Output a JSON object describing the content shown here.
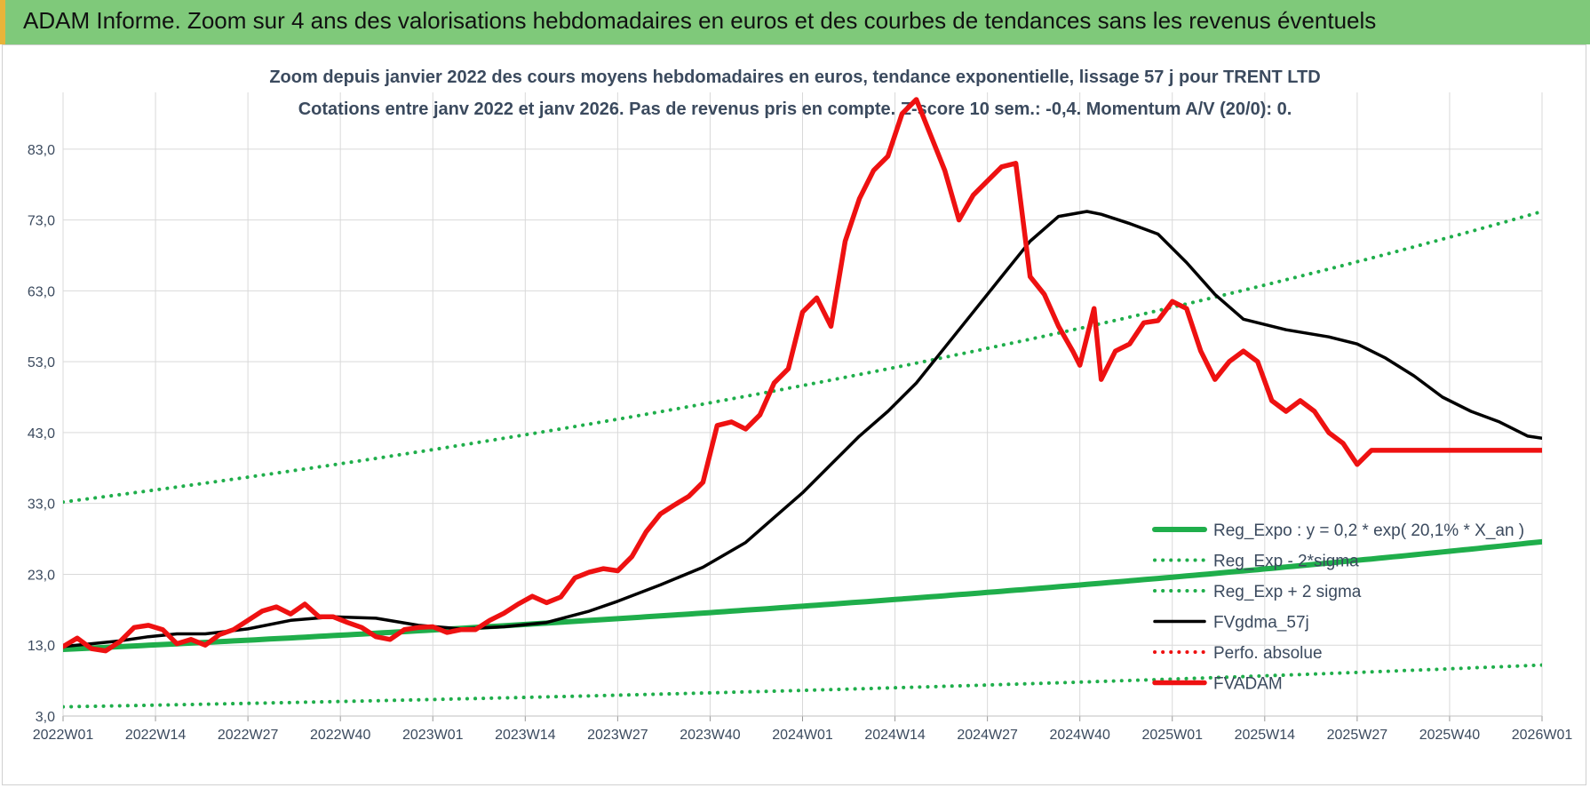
{
  "banner": {
    "title": "ADAM Informe. Zoom sur 4 ans des valorisations hebdomadaires en euros et des courbes de tendances sans les revenus éventuels"
  },
  "colors": {
    "banner_bg": "#7fc97a",
    "green": "#1fae4b",
    "black": "#000000",
    "red": "#ee1111",
    "grid": "#d9d9d9",
    "title_text": "#3b4a5e",
    "axis_text": "#3b4a5e"
  },
  "chart_data": {
    "type": "line",
    "title": "Zoom depuis janvier 2022 des cours moyens hebdomadaires en euros, tendance exponentielle, lissage 57 j pour TRENT LTD",
    "subtitle": "Cotations entre janv 2022 et janv 2026. Pas de revenus pris en compte. Z-score 10 sem.: -0,4. Momentum A/V (20/0): 0.",
    "ylim": [
      3,
      91
    ],
    "grid": true,
    "legend_position": "right",
    "y_ticks": [
      "3,0",
      "13,0",
      "23,0",
      "33,0",
      "43,0",
      "53,0",
      "63,0",
      "73,0",
      "83,0"
    ],
    "y_tick_values": [
      3,
      13,
      23,
      33,
      43,
      53,
      63,
      73,
      83
    ],
    "x_ticks": [
      "2022W01",
      "2022W14",
      "2022W27",
      "2022W40",
      "2023W01",
      "2023W14",
      "2023W27",
      "2023W40",
      "2024W01",
      "2024W14",
      "2024W27",
      "2024W40",
      "2025W01",
      "2025W14",
      "2025W27",
      "2025W40",
      "2026W01"
    ],
    "x_tick_weeks": [
      0,
      13,
      26,
      39,
      52,
      65,
      78,
      91,
      104,
      117,
      130,
      143,
      156,
      169,
      182,
      195,
      208
    ],
    "series": [
      {
        "name": "Reg_Expo : y = 0,2 * exp( 20,1% *  X_an )",
        "style": "solid-thick",
        "color": "#1fae4b",
        "x": [
          0,
          208
        ],
        "y": [
          12.4,
          27.6
        ],
        "curve": "exponential"
      },
      {
        "name": "Reg_Exp - 2*sigma",
        "style": "dotted",
        "color": "#1fae4b",
        "x": [
          0,
          208
        ],
        "y": [
          4.3,
          10.2
        ],
        "curve": "exponential"
      },
      {
        "name": "Reg_Exp + 2 sigma",
        "style": "dotted",
        "color": "#1fae4b",
        "x": [
          0,
          208
        ],
        "y": [
          33.2,
          74.2
        ],
        "curve": "exponential"
      },
      {
        "name": "FVgdma_57j",
        "style": "solid",
        "color": "#000000",
        "x": [
          0,
          4,
          8,
          12,
          16,
          20,
          26,
          32,
          38,
          44,
          50,
          56,
          62,
          68,
          74,
          78,
          84,
          90,
          96,
          100,
          104,
          108,
          112,
          116,
          120,
          124,
          128,
          132,
          136,
          140,
          144,
          146,
          150,
          154,
          158,
          162,
          166,
          172,
          178,
          182,
          186,
          190,
          194,
          198,
          202,
          206,
          208
        ],
        "y": [
          12.8,
          13.2,
          13.6,
          14.2,
          14.6,
          14.6,
          15.3,
          16.5,
          17.0,
          16.8,
          15.8,
          15.3,
          15.6,
          16.2,
          17.8,
          19.2,
          21.5,
          24.0,
          27.5,
          31.0,
          34.5,
          38.5,
          42.5,
          46.0,
          50.0,
          55.0,
          60.0,
          65.0,
          70.0,
          73.5,
          74.2,
          73.8,
          72.5,
          71.0,
          67.0,
          62.5,
          59.0,
          57.5,
          56.5,
          55.5,
          53.5,
          51.0,
          48.0,
          46.0,
          44.5,
          42.5,
          42.2
        ]
      },
      {
        "name": "Perfo. absolue",
        "style": "dotted",
        "color": "#ee1111",
        "x": [],
        "y": []
      },
      {
        "name": "FVADAM",
        "style": "solid-thick",
        "color": "#ee1111",
        "x": [
          0,
          2,
          4,
          6,
          8,
          10,
          12,
          14,
          16,
          18,
          20,
          22,
          24,
          26,
          28,
          30,
          32,
          34,
          36,
          38,
          40,
          42,
          44,
          46,
          48,
          50,
          52,
          54,
          56,
          58,
          60,
          62,
          64,
          66,
          68,
          70,
          72,
          74,
          76,
          78,
          80,
          82,
          84,
          86,
          88,
          90,
          92,
          94,
          96,
          98,
          100,
          102,
          104,
          106,
          108,
          110,
          112,
          114,
          116,
          118,
          120,
          122,
          124,
          126,
          128,
          130,
          132,
          134,
          136,
          138,
          140,
          142,
          143,
          144,
          145,
          146,
          148,
          150,
          152,
          154,
          156,
          158,
          160,
          162,
          164,
          166,
          168,
          170,
          172,
          174,
          176,
          178,
          180,
          182,
          184,
          186,
          188,
          190,
          192,
          194,
          196,
          198,
          200,
          202,
          204,
          206,
          208
        ],
        "y": [
          12.8,
          14.0,
          12.5,
          12.2,
          13.5,
          15.5,
          15.8,
          15.2,
          13.2,
          13.8,
          13.0,
          14.5,
          15.2,
          16.5,
          17.8,
          18.4,
          17.4,
          18.8,
          17.0,
          17.0,
          16.2,
          15.5,
          14.2,
          13.8,
          15.2,
          15.5,
          15.6,
          14.8,
          15.2,
          15.2,
          16.5,
          17.5,
          18.8,
          19.9,
          19.0,
          19.8,
          22.5,
          23.3,
          23.8,
          23.5,
          25.5,
          29.0,
          31.5,
          32.8,
          34.0,
          36.0,
          44.0,
          44.5,
          43.5,
          45.5,
          50.0,
          52.0,
          60.0,
          62.0,
          58.0,
          70.0,
          76.0,
          80.0,
          82.0,
          88.0,
          90.0,
          85.0,
          80.0,
          73.0,
          76.5,
          78.5,
          80.5,
          81.0,
          65.0,
          62.5,
          58.0,
          54.5,
          52.5,
          56.5,
          60.5,
          50.5,
          54.5,
          55.5,
          58.5,
          58.8,
          61.5,
          60.5,
          54.5,
          50.5,
          53.0,
          54.5,
          53.0,
          47.5,
          46.0,
          47.5,
          46.0,
          43.0,
          41.5,
          38.5,
          40.5,
          40.5,
          40.5,
          40.5,
          40.5,
          40.5,
          40.5,
          40.5,
          40.5,
          40.5,
          40.5,
          40.5,
          40.5
        ]
      }
    ]
  }
}
